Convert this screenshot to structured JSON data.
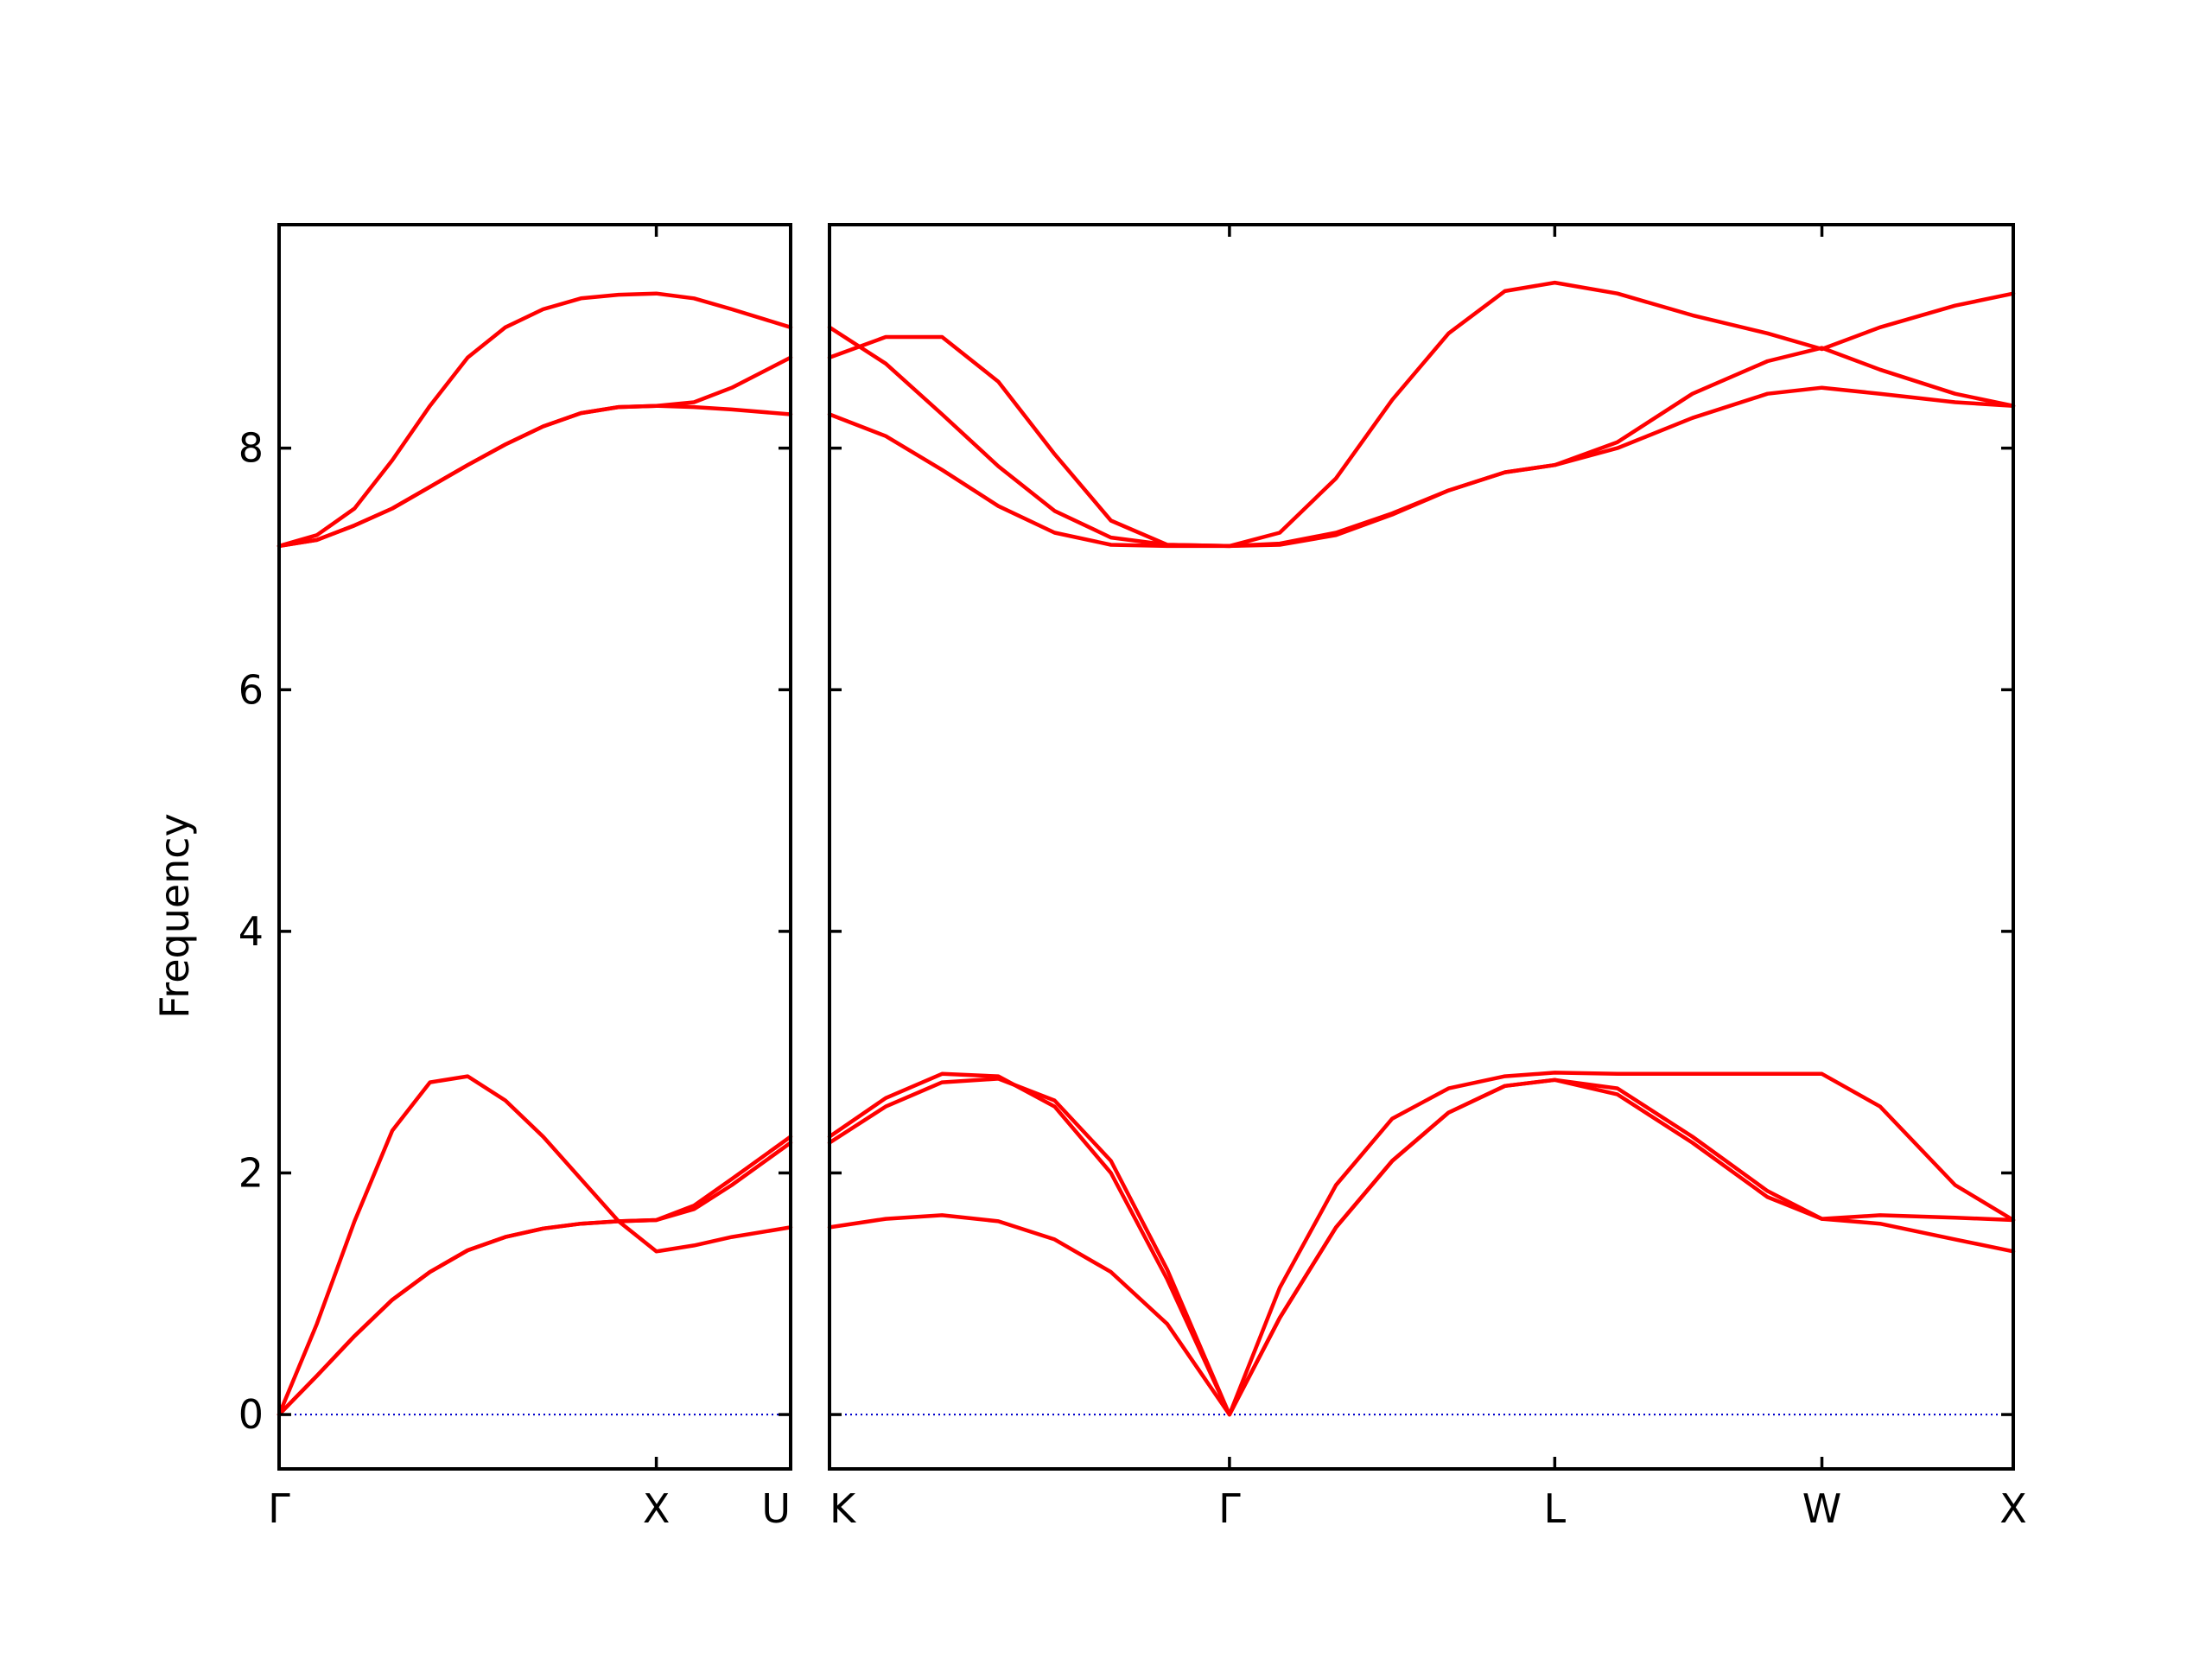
{
  "chart_data": {
    "type": "line",
    "ylabel": "Frequency",
    "xlabel": "",
    "ylim": [
      -0.45,
      9.85
    ],
    "yticks": [
      0,
      2,
      4,
      6,
      8
    ],
    "grid": false,
    "line_color": "#ff0000",
    "zero_line_color": "#0000cc",
    "panels": [
      {
        "name": "Γ–X–U",
        "xrange": [
          0,
          1.356
        ],
        "ticks": [
          {
            "x": 0,
            "label": "Γ"
          },
          {
            "x": 1.0,
            "label": "X"
          },
          {
            "x": 1.356,
            "label": "U"
          }
        ],
        "series": [
          {
            "x": [
              0,
              0.1,
              0.2,
              0.3,
              0.4,
              0.5,
              0.6,
              0.7,
              0.8,
              0.9,
              1.0,
              1.1,
              1.2,
              1.356
            ],
            "y": [
              0,
              0.75,
              1.6,
              2.35,
              2.75,
              2.8,
              2.6,
              2.3,
              1.95,
              1.6,
              1.35,
              1.4,
              1.47,
              1.55
            ]
          },
          {
            "x": [
              0,
              0.1,
              0.2,
              0.3,
              0.4,
              0.5,
              0.6,
              0.7,
              0.8,
              0.9,
              1.0,
              1.1,
              1.2,
              1.356
            ],
            "y": [
              0,
              0.32,
              0.65,
              0.95,
              1.18,
              1.36,
              1.47,
              1.54,
              1.58,
              1.6,
              1.61,
              1.73,
              1.95,
              2.3
            ]
          },
          {
            "x": [
              0,
              0.1,
              0.2,
              0.3,
              0.4,
              0.5,
              0.6,
              0.7,
              0.8,
              0.9,
              1.0,
              1.1,
              1.2,
              1.356
            ],
            "y": [
              0,
              0.32,
              0.65,
              0.95,
              1.18,
              1.36,
              1.47,
              1.54,
              1.58,
              1.6,
              1.61,
              1.7,
              1.9,
              2.25
            ]
          },
          {
            "x": [
              0,
              0.1,
              0.2,
              0.3,
              0.4,
              0.5,
              0.6,
              0.7,
              0.8,
              0.9,
              1.0,
              1.1,
              1.2,
              1.356
            ],
            "y": [
              7.19,
              7.28,
              7.5,
              7.9,
              8.35,
              8.75,
              9.0,
              9.15,
              9.24,
              9.27,
              9.28,
              9.24,
              9.15,
              9.0
            ]
          },
          {
            "x": [
              0,
              0.1,
              0.2,
              0.3,
              0.4,
              0.5,
              0.6,
              0.7,
              0.8,
              0.9,
              1.0,
              1.1,
              1.2,
              1.356
            ],
            "y": [
              7.19,
              7.24,
              7.36,
              7.5,
              7.68,
              7.86,
              8.03,
              8.18,
              8.29,
              8.34,
              8.35,
              8.38,
              8.5,
              8.75
            ]
          },
          {
            "x": [
              0,
              0.1,
              0.2,
              0.3,
              0.4,
              0.5,
              0.6,
              0.7,
              0.8,
              0.9,
              1.0,
              1.1,
              1.2,
              1.356
            ],
            "y": [
              7.19,
              7.24,
              7.36,
              7.5,
              7.68,
              7.86,
              8.03,
              8.18,
              8.29,
              8.34,
              8.35,
              8.34,
              8.32,
              8.28
            ]
          }
        ]
      },
      {
        "name": "K–Γ–L–W–X",
        "xrange": [
          0,
          3.155
        ],
        "ticks": [
          {
            "x": 0,
            "label": "K"
          },
          {
            "x": 1.066,
            "label": "Γ"
          },
          {
            "x": 1.933,
            "label": "L"
          },
          {
            "x": 2.645,
            "label": "W"
          },
          {
            "x": 3.155,
            "label": "X"
          }
        ],
        "series": [
          {
            "x": [
              0,
              0.15,
              0.3,
              0.45,
              0.6,
              0.75,
              0.9,
              1.066,
              1.2,
              1.35,
              1.5,
              1.65,
              1.8,
              1.933,
              2.1,
              2.3,
              2.5,
              2.645,
              2.8,
              3.0,
              3.155
            ],
            "y": [
              1.55,
              1.62,
              1.65,
              1.6,
              1.45,
              1.18,
              0.75,
              0,
              0.8,
              1.55,
              2.1,
              2.5,
              2.72,
              2.77,
              2.65,
              2.25,
              1.8,
              1.62,
              1.58,
              1.45,
              1.35
            ]
          },
          {
            "x": [
              0,
              0.15,
              0.3,
              0.45,
              0.6,
              0.75,
              0.9,
              1.066,
              1.2,
              1.35,
              1.5,
              1.65,
              1.8,
              1.933,
              2.1,
              2.3,
              2.5,
              2.645,
              2.8,
              3.0,
              3.155
            ],
            "y": [
              2.25,
              2.55,
              2.75,
              2.78,
              2.6,
              2.1,
              1.2,
              0,
              0.8,
              1.55,
              2.1,
              2.5,
              2.72,
              2.77,
              2.7,
              2.3,
              1.85,
              1.62,
              1.65,
              1.63,
              1.61
            ]
          },
          {
            "x": [
              0,
              0.15,
              0.3,
              0.45,
              0.6,
              0.75,
              0.9,
              1.066,
              1.2,
              1.35,
              1.5,
              1.65,
              1.8,
              1.933,
              2.1,
              2.3,
              2.5,
              2.645,
              2.8,
              3.0,
              3.155
            ],
            "y": [
              2.3,
              2.62,
              2.82,
              2.8,
              2.55,
              2.0,
              1.12,
              0,
              1.05,
              1.9,
              2.45,
              2.7,
              2.8,
              2.83,
              2.82,
              2.82,
              2.82,
              2.82,
              2.55,
              1.9,
              1.61
            ]
          },
          {
            "x": [
              0,
              0.15,
              0.3,
              0.45,
              0.6,
              0.75,
              0.9,
              1.066,
              1.2,
              1.35,
              1.5,
              1.65,
              1.8,
              1.933,
              2.1,
              2.3,
              2.5,
              2.645,
              2.8,
              3.0,
              3.155
            ],
            "y": [
              8.28,
              8.1,
              7.82,
              7.52,
              7.3,
              7.2,
              7.19,
              7.19,
              7.2,
              7.28,
              7.45,
              7.65,
              7.8,
              7.86,
              8.0,
              8.25,
              8.45,
              8.5,
              8.45,
              8.38,
              8.35
            ]
          },
          {
            "x": [
              0,
              0.15,
              0.3,
              0.45,
              0.6,
              0.75,
              0.9,
              1.066,
              1.2,
              1.35,
              1.5,
              1.65,
              1.8,
              1.933,
              2.1,
              2.3,
              2.5,
              2.645,
              2.8,
              3.0,
              3.155
            ],
            "y": [
              9.0,
              8.7,
              8.28,
              7.85,
              7.48,
              7.26,
              7.2,
              7.19,
              7.21,
              7.3,
              7.46,
              7.65,
              7.8,
              7.86,
              8.05,
              8.45,
              8.72,
              8.83,
              8.65,
              8.45,
              8.35
            ]
          },
          {
            "x": [
              0,
              0.15,
              0.3,
              0.45,
              0.6,
              0.75,
              0.9,
              1.066,
              1.2,
              1.35,
              1.5,
              1.65,
              1.8,
              1.933,
              2.1,
              2.3,
              2.5,
              2.645,
              2.8,
              3.0,
              3.155
            ],
            "y": [
              8.75,
              8.92,
              8.92,
              8.55,
              7.95,
              7.4,
              7.2,
              7.19,
              7.3,
              7.75,
              8.4,
              8.95,
              9.3,
              9.37,
              9.28,
              9.1,
              8.95,
              8.82,
              9.0,
              9.18,
              9.28
            ]
          }
        ]
      }
    ]
  }
}
